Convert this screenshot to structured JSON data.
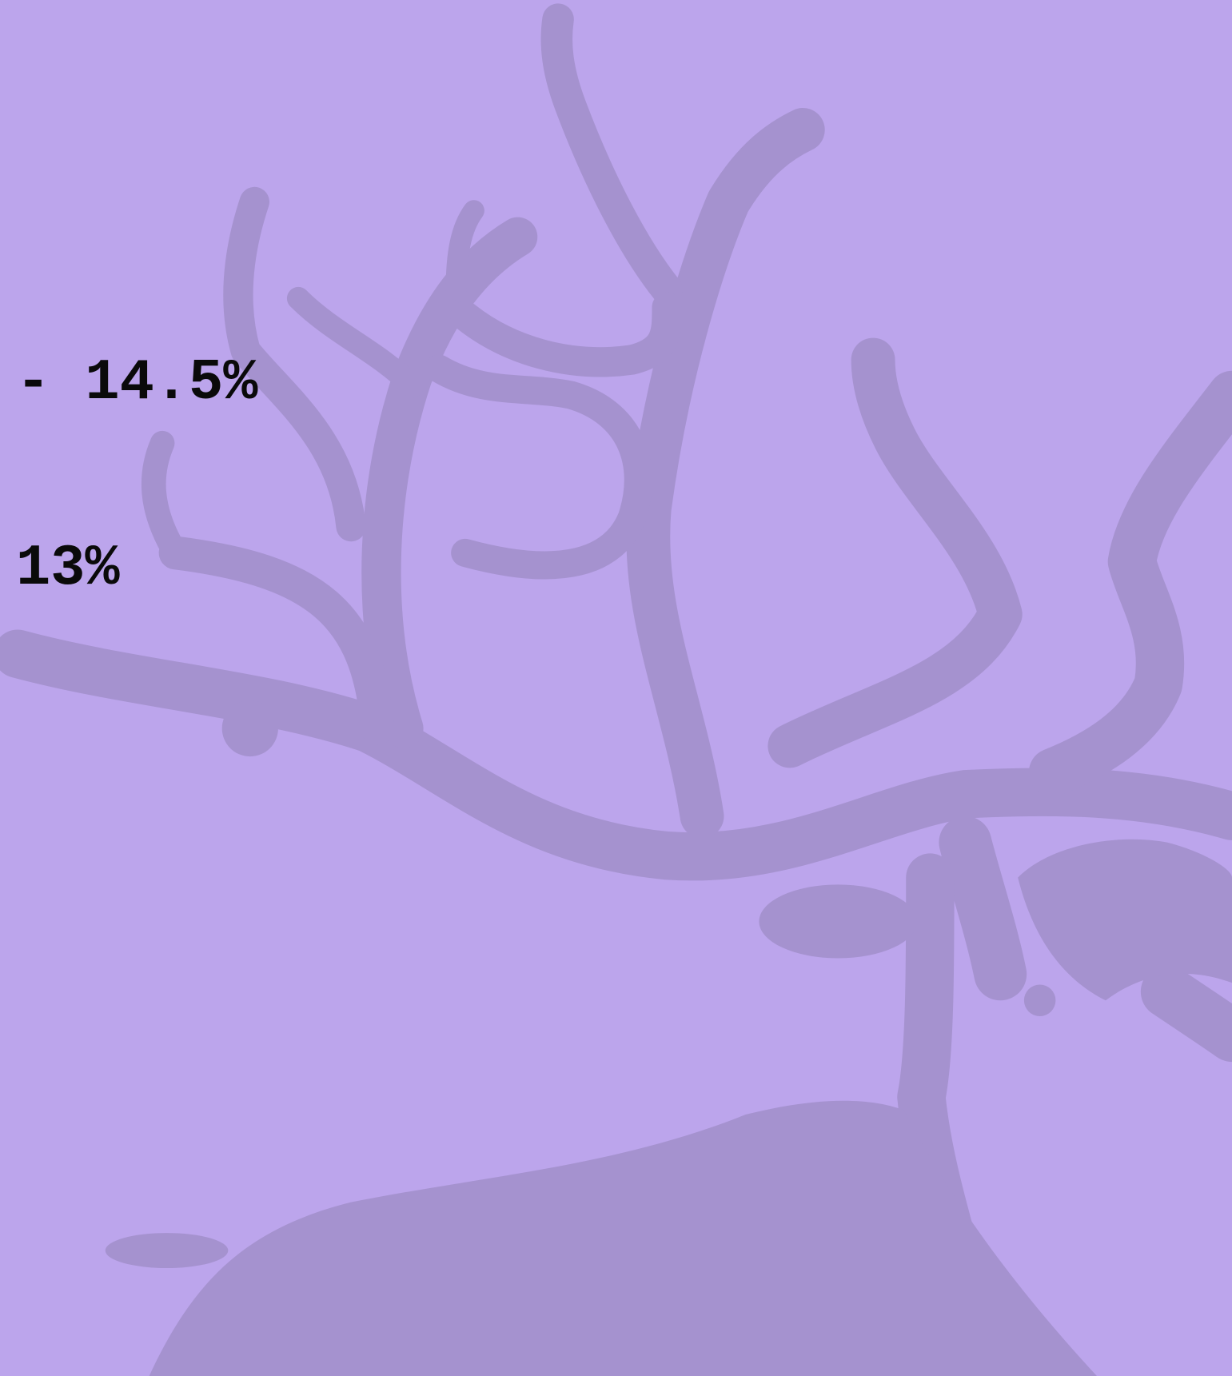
{
  "items": [
    {
      "text": "- 14.5%"
    },
    {
      "text": "13%"
    }
  ]
}
